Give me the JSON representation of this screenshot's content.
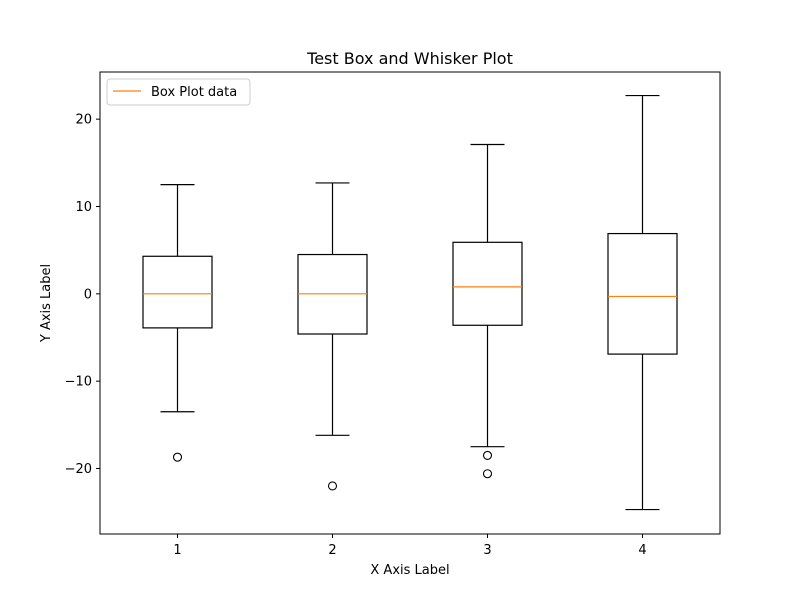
{
  "chart_data": {
    "type": "box",
    "title": "Test Box and Whisker Plot",
    "xlabel": "X Axis Label",
    "ylabel": "Y Axis Label",
    "categories": [
      "1",
      "2",
      "3",
      "4"
    ],
    "ylim": [
      -27.5,
      25.4
    ],
    "xlim": [
      0.5,
      4.5
    ],
    "yticks": [
      -20,
      -10,
      0,
      10,
      20
    ],
    "ytick_labels": [
      "−20",
      "−10",
      "0",
      "10",
      "20"
    ],
    "grid": false,
    "legend": {
      "position": "top-left",
      "entries": [
        "Box Plot data"
      ]
    },
    "colors": {
      "box": "#000000",
      "median": "#ff7f0e",
      "background": "#ffffff"
    },
    "boxes": [
      {
        "category": "1",
        "whisker_low": -13.5,
        "q1": -3.9,
        "median": 0.0,
        "q3": 4.3,
        "whisker_high": 12.5,
        "outliers": [
          -18.7
        ]
      },
      {
        "category": "2",
        "whisker_low": -16.2,
        "q1": -4.6,
        "median": 0.0,
        "q3": 4.5,
        "whisker_high": 12.7,
        "outliers": [
          -22.0
        ]
      },
      {
        "category": "3",
        "whisker_low": -17.5,
        "q1": -3.6,
        "median": 0.8,
        "q3": 5.9,
        "whisker_high": 17.1,
        "outliers": [
          -18.5,
          -20.6
        ]
      },
      {
        "category": "4",
        "whisker_low": -24.7,
        "q1": -6.9,
        "median": -0.3,
        "q3": 6.9,
        "whisker_high": 22.7,
        "outliers": []
      }
    ]
  }
}
